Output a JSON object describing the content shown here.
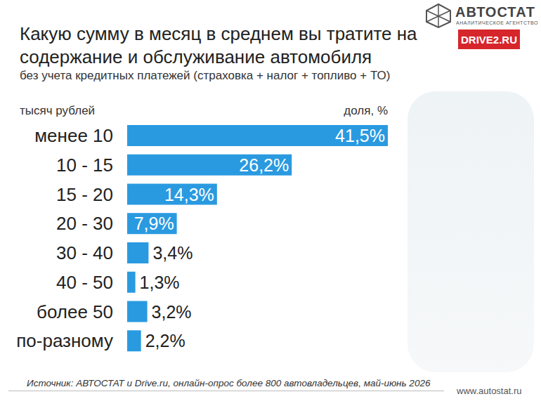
{
  "chart_data": {
    "type": "bar",
    "orientation": "horizontal",
    "title": "Какую сумму в месяц в среднем вы тратите на содержание и обслуживание автомобиля",
    "subtitle": "без учета кредитных платежей (страховка + налог + топливо + ТО)",
    "y_label": "тысяч рублей",
    "x_label": "доля, %",
    "categories": [
      "менее 10",
      "10 - 15",
      "15 - 20",
      "20 - 30",
      "30 - 40",
      "40 - 50",
      "более 50",
      "по-разному"
    ],
    "values": [
      41.5,
      26.2,
      14.3,
      7.9,
      3.4,
      1.3,
      3.2,
      2.2
    ],
    "value_labels": [
      "41,5%",
      "26,2%",
      "14,3%",
      "7,9%",
      "3,4%",
      "1,3%",
      "3,2%",
      "2,2%"
    ],
    "color": "#2a9ae0",
    "data_labels": true,
    "tick_labels": "y",
    "grid": false,
    "source": "Источник: АВТОСТАТ и Drive.ru, онлайн-опрос более 800 автовладельцев, май-июнь 2026",
    "logo": "АВТОСТАТ",
    "logo_subtitle": "АНАЛИТИЧЕСКОЕ АГЕНТСТВО",
    "partner_logo": "DRIVE2.RU",
    "website": "www.autostat.ru"
  }
}
